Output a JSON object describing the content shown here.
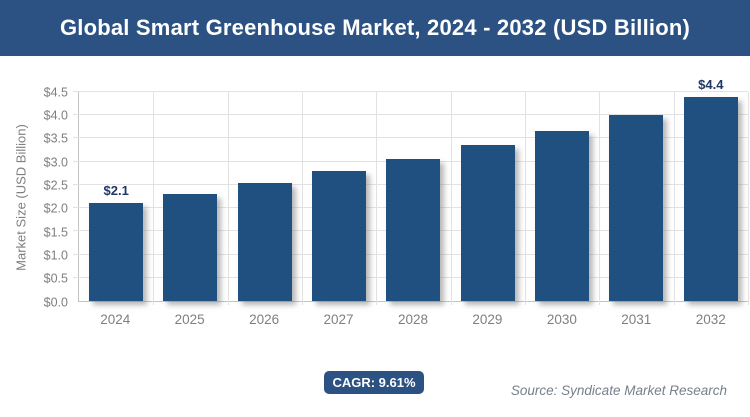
{
  "banner": {
    "title": "Global Smart Greenhouse Market, 2024 - 2032 (USD Billion)",
    "bg_color": "#2B5283",
    "text_color": "#FFFFFF"
  },
  "chart_data": {
    "type": "bar",
    "title": "Global Smart Greenhouse Market, 2024 - 2032 (USD Billion)",
    "categories": [
      "2024",
      "2025",
      "2026",
      "2027",
      "2028",
      "2029",
      "2030",
      "2031",
      "2032"
    ],
    "values": [
      2.1,
      2.3,
      2.55,
      2.8,
      3.05,
      3.35,
      3.65,
      4.0,
      4.4
    ],
    "value_labels": [
      "$2.1",
      null,
      null,
      null,
      null,
      null,
      null,
      null,
      "$4.4"
    ],
    "xlabel": "",
    "ylabel": "Market Size (USD Billion)",
    "ylim": [
      0,
      4.5
    ],
    "ytick_step": 0.5,
    "ytick_labels": [
      "$0.0",
      "$0.5",
      "$1.0",
      "$1.5",
      "$2.0",
      "$2.5",
      "$3.0",
      "$3.5",
      "$4.0",
      "$4.5"
    ],
    "grid": true,
    "legend": false,
    "bar_color": "#20507F",
    "label_color": "#1F3864",
    "axis_text_color": "#7F7F7F"
  },
  "footer": {
    "cagr_label": "CAGR: 9.61%",
    "source": "Source: Syndicate Market Research"
  }
}
